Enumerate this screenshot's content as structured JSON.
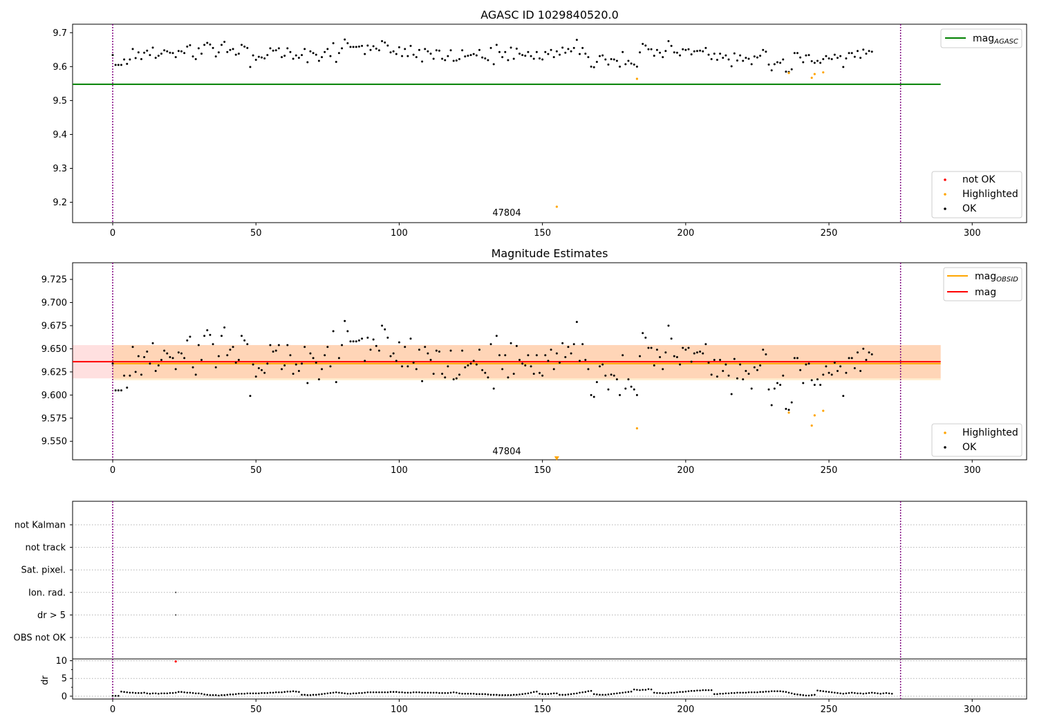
{
  "figure": {
    "title_top": "AGASC ID 1029840520.0",
    "title_middle": "Magnitude Estimates",
    "annotation": "47804",
    "x_ticks": [
      0,
      50,
      100,
      150,
      200,
      250,
      300
    ],
    "xlim": [
      -14,
      319
    ],
    "vlines": [
      0,
      275
    ]
  },
  "colors": {
    "ok": "#000000",
    "highlighted": "#FFA500",
    "not_ok": "#FF0000",
    "mag_agasc": "#008000",
    "mag_obsid": "#FFA500",
    "mag": "#FF0000",
    "vline": "#800080",
    "grid": "#b0b0b0"
  },
  "legends": {
    "top_line": {
      "base": "mag",
      "sub": "AGASC"
    },
    "top_points": [
      "not OK",
      "Highlighted",
      "OK"
    ],
    "mid_lines": [
      {
        "base": "mag",
        "sub": "OBSID"
      },
      {
        "base": "mag",
        "sub": ""
      }
    ],
    "mid_points": [
      "Highlighted",
      "OK"
    ]
  },
  "flags_panel": {
    "categories": [
      "not Kalman",
      "not track",
      "Sat. pixel.",
      "Ion. rad.",
      "dr > 5",
      "OBS not OK"
    ],
    "markers": [
      {
        "category": "Ion. rad.",
        "x": 22
      },
      {
        "category": "dr > 5",
        "x": 22
      }
    ]
  },
  "chart_data": [
    {
      "type": "scatter",
      "title": "AGASC ID 1029840520.0",
      "xlim": [
        -14,
        319
      ],
      "ylim": [
        9.14,
        9.725
      ],
      "y_ticks": [
        9.2,
        9.3,
        9.4,
        9.5,
        9.6,
        9.7
      ],
      "mag_agasc": 9.548,
      "agasc_line_x": [
        -14,
        289
      ],
      "ok_y": [
        9.634,
        9.605,
        9.605,
        9.605,
        9.621,
        9.608,
        9.621,
        9.652,
        9.625,
        9.642,
        9.622,
        9.641,
        9.647,
        9.634,
        9.656,
        9.626,
        9.632,
        9.638,
        9.648,
        9.645,
        9.641,
        9.64,
        9.628,
        9.646,
        9.645,
        9.64,
        9.659,
        9.663,
        9.63,
        9.622,
        9.654,
        9.638,
        9.664,
        9.67,
        9.665,
        9.655,
        9.63,
        9.642,
        9.664,
        9.673,
        9.643,
        9.649,
        9.652,
        9.635,
        9.638,
        9.664,
        9.659,
        9.655,
        9.599,
        9.633,
        9.62,
        9.629,
        9.627,
        9.624,
        9.634,
        9.654,
        9.647,
        9.648,
        9.654,
        9.628,
        9.632,
        9.654,
        9.643,
        9.623,
        9.633,
        9.626,
        9.634,
        9.652,
        9.613,
        9.645,
        9.64,
        9.635,
        9.617,
        9.628,
        9.643,
        9.652,
        9.631,
        9.669,
        9.614,
        9.64,
        9.654,
        9.68,
        9.669,
        9.658,
        9.658,
        9.658,
        9.659,
        9.661,
        9.637,
        9.662,
        9.649,
        9.66,
        9.653,
        9.648,
        9.675,
        9.671,
        9.662,
        9.642,
        9.645,
        9.637,
        9.657,
        9.631,
        9.652,
        9.631,
        9.661,
        9.635,
        9.628,
        9.649,
        9.615,
        9.652,
        9.645,
        9.638,
        9.623,
        9.648,
        9.647,
        9.623,
        9.619,
        9.631,
        9.648,
        9.617,
        9.618,
        9.622,
        9.648,
        9.63,
        9.632,
        9.634,
        9.637,
        9.633,
        9.649,
        9.627,
        9.624,
        9.619,
        9.655,
        9.607,
        9.664,
        9.643,
        9.628,
        9.643,
        9.619,
        9.656,
        9.623,
        9.653,
        9.638,
        9.634,
        9.632,
        9.643,
        9.631,
        9.623,
        9.643,
        9.624,
        9.621,
        9.643,
        9.637,
        9.649,
        9.628,
        9.645,
        9.635,
        9.656,
        9.641,
        9.652,
        9.645,
        9.655,
        9.679,
        9.637,
        9.655,
        9.638,
        9.628,
        9.6,
        9.598,
        9.614,
        9.631,
        9.633,
        9.621,
        9.606,
        9.622,
        9.621,
        9.617,
        9.6,
        9.643,
        9.607,
        9.617,
        9.609,
        9.606,
        9.6,
        9.642,
        9.667,
        9.662,
        9.651,
        9.651,
        9.632,
        9.649,
        9.641,
        9.628,
        9.646,
        9.675,
        9.661,
        9.642,
        9.641,
        9.633,
        9.651,
        9.649,
        9.651,
        9.636,
        9.645,
        9.646,
        9.647,
        9.645,
        9.655,
        9.635,
        9.622,
        9.638,
        9.62,
        9.638,
        9.626,
        9.633,
        9.621,
        9.601,
        9.639,
        9.618,
        9.633,
        9.617,
        9.626,
        9.623,
        9.607,
        9.63,
        9.627,
        9.632,
        9.649,
        9.644,
        9.606,
        9.589,
        9.607,
        9.613,
        9.611,
        9.621,
        9.585,
        9.584,
        9.592,
        9.64,
        9.64,
        9.627,
        9.613,
        9.633,
        9.634,
        9.616,
        9.611,
        9.617,
        9.611,
        9.622,
        9.631,
        9.624,
        9.622,
        9.635,
        9.626,
        9.631,
        9.599,
        9.624,
        9.64,
        9.64,
        9.629,
        9.646,
        9.626,
        9.65,
        9.638,
        9.646,
        9.644
      ],
      "highlighted": [
        {
          "x": 155,
          "y": 9.187
        },
        {
          "x": 183,
          "y": 9.564
        },
        {
          "x": 236,
          "y": 9.581
        },
        {
          "x": 244,
          "y": 9.567
        },
        {
          "x": 245,
          "y": 9.578
        },
        {
          "x": 248,
          "y": 9.583
        }
      ],
      "legend": [
        "mag AGASC",
        "not OK",
        "Highlighted",
        "OK"
      ]
    },
    {
      "type": "scatter",
      "title": "Magnitude Estimates",
      "xlim": [
        -14,
        319
      ],
      "ylim": [
        9.53,
        9.743
      ],
      "y_ticks": [
        9.55,
        9.575,
        9.6,
        9.625,
        9.65,
        9.675,
        9.7,
        9.725
      ],
      "mag": 9.636,
      "mag_band": [
        9.618,
        9.654
      ],
      "mag_obsid": 9.634,
      "mag_obsid_band": [
        9.616,
        9.654
      ],
      "band_x": [
        -14,
        289
      ],
      "ok_y_same_as_top": true,
      "highlighted": [
        {
          "x": 155,
          "y": 9.53,
          "marker": "triangle-down"
        },
        {
          "x": 183,
          "y": 9.564
        },
        {
          "x": 236,
          "y": 9.581
        },
        {
          "x": 244,
          "y": 9.567
        },
        {
          "x": 245,
          "y": 9.578
        },
        {
          "x": 248,
          "y": 9.583
        }
      ],
      "legend": [
        "mag OBSID",
        "mag",
        "Highlighted",
        "OK"
      ]
    },
    {
      "type": "scatter",
      "ylabel": "dr",
      "xlim": [
        -14,
        319
      ],
      "ylim": [
        -0.8,
        10.5
      ],
      "y_ticks": [
        0,
        5,
        10
      ],
      "dr": [
        0.1,
        0.1,
        0.1,
        1.3,
        1.2,
        1.1,
        1.0,
        1.0,
        0.9,
        0.9,
        0.9,
        1.0,
        0.8,
        0.7,
        0.8,
        0.8,
        0.7,
        0.8,
        0.8,
        0.8,
        0.9,
        0.9,
        1.0,
        1.2,
        1.2,
        1.1,
        1.0,
        1.0,
        0.9,
        0.8,
        0.8,
        0.7,
        0.5,
        0.4,
        0.3,
        0.3,
        0.3,
        0.2,
        0.3,
        0.3,
        0.4,
        0.5,
        0.5,
        0.6,
        0.7,
        0.7,
        0.7,
        0.8,
        0.8,
        0.8,
        0.8,
        0.8,
        0.9,
        0.9,
        0.9,
        1.0,
        1.0,
        1.1,
        1.1,
        1.1,
        1.2,
        1.3,
        1.3,
        1.4,
        1.3,
        1.2,
        0.4,
        0.4,
        0.3,
        0.3,
        0.4,
        0.4,
        0.5,
        0.6,
        0.7,
        0.8,
        0.9,
        1.0,
        1.1,
        1.0,
        0.9,
        0.8,
        0.7,
        0.7,
        0.8,
        0.8,
        0.9,
        0.9,
        1.0,
        1.1,
        1.1,
        1.1,
        1.1,
        1.1,
        1.1,
        1.1,
        1.1,
        1.2,
        1.2,
        1.2,
        1.1,
        1.1,
        1.0,
        1.0,
        1.0,
        1.1,
        1.1,
        1.1,
        1.0,
        1.0,
        1.0,
        1.0,
        1.0,
        1.0,
        0.9,
        0.9,
        0.9,
        0.9,
        1.0,
        1.1,
        1.0,
        0.8,
        0.7,
        0.7,
        0.7,
        0.7,
        0.7,
        0.6,
        0.6,
        0.6,
        0.6,
        0.5,
        0.4,
        0.4,
        0.4,
        0.3,
        0.3,
        0.3,
        0.3,
        0.3,
        0.4,
        0.4,
        0.5,
        0.6,
        0.7,
        0.8,
        1.0,
        1.2,
        1.3,
        0.7,
        0.6,
        0.6,
        0.6,
        0.7,
        0.8,
        0.8,
        0.4,
        0.4,
        0.4,
        0.5,
        0.6,
        0.7,
        0.8,
        1.0,
        1.1,
        1.2,
        1.4,
        1.5,
        0.6,
        0.5,
        0.4,
        0.4,
        0.4,
        0.5,
        0.6,
        0.7,
        0.8,
        0.9,
        1.0,
        1.1,
        1.2,
        1.3,
        1.9,
        1.8,
        1.7,
        1.8,
        1.8,
        2.0,
        1.9,
        1.0,
        0.9,
        0.9,
        0.8,
        0.8,
        0.9,
        1.0,
        1.0,
        1.1,
        1.2,
        1.2,
        1.3,
        1.4,
        1.5,
        1.5,
        1.6,
        1.6,
        1.7,
        1.7,
        1.7,
        1.7,
        0.6,
        0.6,
        0.7,
        0.7,
        0.8,
        0.8,
        0.9,
        0.9,
        1.0,
        1.0,
        1.0,
        1.0,
        1.1,
        1.1,
        1.1,
        1.1,
        1.2,
        1.2,
        1.3,
        1.3,
        1.4,
        1.4,
        1.4,
        1.4,
        1.3,
        1.2,
        1.0,
        0.8,
        0.6,
        0.5,
        0.4,
        0.3,
        0.2,
        0.2,
        0.3,
        0.4,
        1.6,
        1.5,
        1.4,
        1.3,
        1.2,
        1.1,
        1.0,
        0.9,
        0.8,
        0.7,
        0.8,
        0.9,
        1.0,
        0.9,
        0.8,
        0.8,
        0.7,
        0.8,
        0.9,
        1.0,
        0.9,
        0.8,
        0.7,
        0.8,
        0.9,
        0.8,
        0.7
      ],
      "not_ok": [
        {
          "x": 22,
          "y": 9.8
        }
      ]
    }
  ]
}
